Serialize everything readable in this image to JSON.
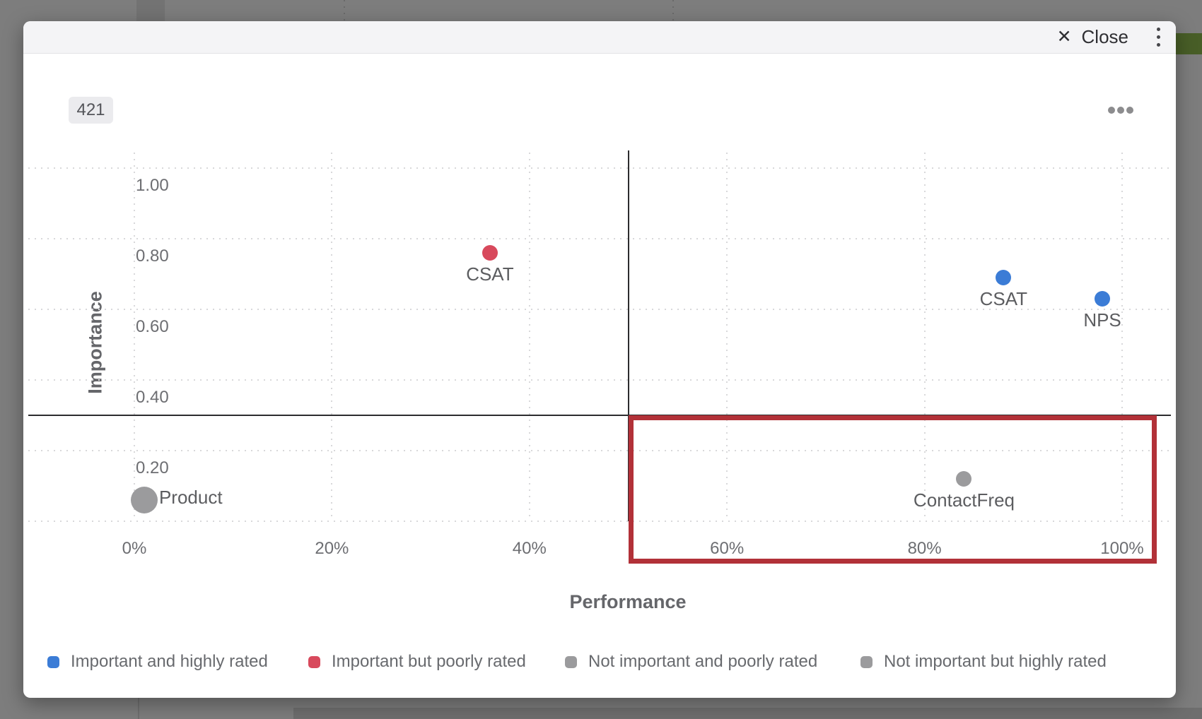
{
  "modal": {
    "close_label": "Close",
    "close_icon": "✕"
  },
  "chart_data": {
    "type": "scatter",
    "badge": "421",
    "xlabel": "Performance",
    "ylabel": "Importance",
    "xlim": [
      0,
      100
    ],
    "ylim": [
      0,
      1.05
    ],
    "grid": "dotted",
    "legend_position": "bottom",
    "x_ticks": [
      "0%",
      "20%",
      "40%",
      "60%",
      "80%",
      "100%"
    ],
    "x_tick_values": [
      0,
      20,
      40,
      60,
      80,
      100
    ],
    "y_ticks": [
      "1.00",
      "0.80",
      "0.60",
      "0.40",
      "0.20"
    ],
    "y_tick_values": [
      1.0,
      0.8,
      0.6,
      0.4,
      0.2
    ],
    "quadrant_divider": {
      "x": 50,
      "y": 0.3
    },
    "points": [
      {
        "label": "CSAT",
        "x": 36,
        "y": 0.76,
        "color": "#d8495c",
        "size": "normal",
        "category": "Important but poorly rated",
        "label_position": "below"
      },
      {
        "label": "CSAT",
        "x": 88,
        "y": 0.69,
        "color": "#3b7cd6",
        "size": "normal",
        "category": "Important and highly rated",
        "label_position": "below"
      },
      {
        "label": "NPS",
        "x": 98,
        "y": 0.63,
        "color": "#3b7cd6",
        "size": "normal",
        "category": "Important and highly rated",
        "label_position": "below"
      },
      {
        "label": "Product",
        "x": 1,
        "y": 0.06,
        "color": "#9b9b9d",
        "size": "large",
        "category": "Not important and poorly rated",
        "label_position": "right"
      },
      {
        "label": "ContactFreq",
        "x": 84,
        "y": 0.12,
        "color": "#9b9b9d",
        "size": "normal",
        "category": "Not important and poorly rated",
        "label_position": "below"
      }
    ],
    "highlight_rect": {
      "x_from": 50,
      "x_to": 103.5,
      "y_from": -0.12,
      "y_to": 0.3,
      "border_color": "#b23138"
    },
    "legend": [
      {
        "label": "Important and highly rated",
        "color": "#3b7cd6"
      },
      {
        "label": "Important but poorly rated",
        "color": "#d8495c"
      },
      {
        "label": "Not important and poorly rated",
        "color": "#9b9b9d"
      },
      {
        "label": "Not important but highly rated",
        "color": "#9b9b9d"
      }
    ]
  }
}
